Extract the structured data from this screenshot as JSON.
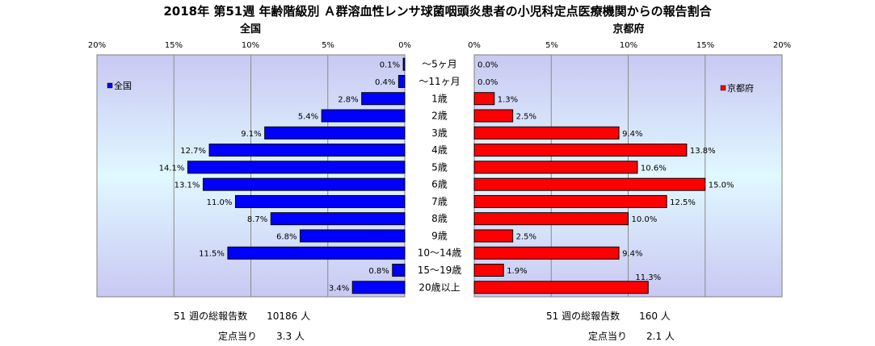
{
  "title": "2018年 第51週 年齢階級別 Ａ群溶血性レンサ球菌咽頭炎患者の小児科定点医療機関からの報告割合",
  "chart_data": {
    "type": "bar",
    "categories": [
      "～5ヶ月",
      "～11ヶ月",
      "1歳",
      "2歳",
      "3歳",
      "4歳",
      "5歳",
      "6歳",
      "7歳",
      "8歳",
      "9歳",
      "10～14歳",
      "15～19歳",
      "20歳以上"
    ],
    "xlim": [
      0,
      20
    ],
    "ticks": [
      "20%",
      "15%",
      "10%",
      "5%",
      "0%"
    ],
    "ticks_right": [
      "0%",
      "5%",
      "10%",
      "15%",
      "20%"
    ],
    "grid": true,
    "series": [
      {
        "name": "全国",
        "subtitle": "全国",
        "color": "#0000ff",
        "values": [
          0.1,
          0.4,
          2.8,
          5.4,
          9.1,
          12.7,
          14.1,
          13.1,
          11.0,
          8.7,
          6.8,
          11.5,
          0.8,
          3.4
        ],
        "labels": [
          "0.1%",
          "0.4%",
          "2.8%",
          "5.4%",
          "9.1%",
          "12.7%",
          "14.1%",
          "13.1%",
          "11.0%",
          "8.7%",
          "6.8%",
          "11.5%",
          "0.8%",
          "3.4%"
        ],
        "legend": "全国"
      },
      {
        "name": "京都府",
        "subtitle": "京都府",
        "color": "#ff0000",
        "values": [
          0.0,
          0.0,
          1.3,
          2.5,
          9.4,
          13.8,
          10.6,
          15.0,
          12.5,
          10.0,
          2.5,
          9.4,
          1.9,
          11.3
        ],
        "labels": [
          "0.0%",
          "0.0%",
          "1.3%",
          "2.5%",
          "9.4%",
          "13.8%",
          "10.6%",
          "15.0%",
          "12.5%",
          "10.0%",
          "2.5%",
          "9.4%",
          "1.9%",
          "11.3%"
        ],
        "legend": "京都府"
      }
    ]
  },
  "summary": {
    "left_total": "51 週の総報告数　　10186 人",
    "left_per": "定点当り　　3.3 人",
    "right_total": "51 週の総報告数　　160 人",
    "right_per": "定点当り　　2.1 人"
  }
}
